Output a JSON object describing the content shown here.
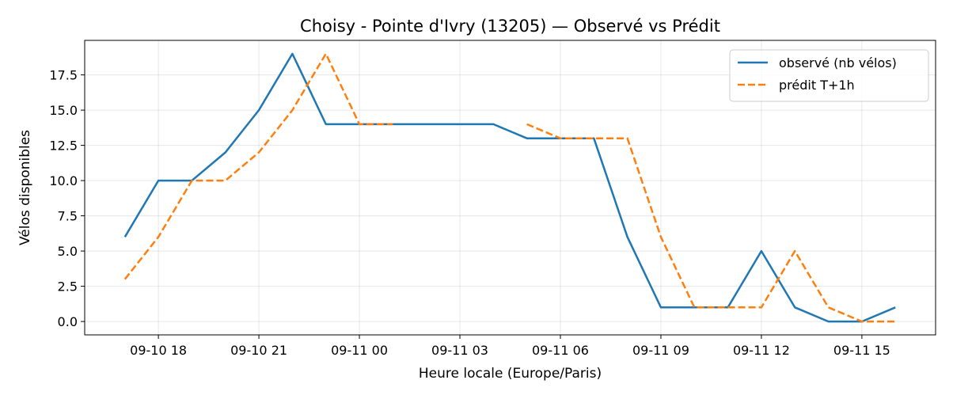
{
  "chart_data": {
    "type": "line",
    "title": "Choisy - Pointe d'Ivry (13205) — Observé vs Prédit",
    "xlabel": "Heure locale (Europe/Paris)",
    "ylabel": "Vélos disponibles",
    "x_ticks": [
      "09-10 18",
      "09-10 21",
      "09-11 00",
      "09-11 03",
      "09-11 06",
      "09-11 09",
      "09-11 12",
      "09-11 15"
    ],
    "x_tick_hours": [
      18,
      21,
      24,
      27,
      30,
      33,
      36,
      39
    ],
    "y_ticks": [
      "0.0",
      "2.5",
      "5.0",
      "7.5",
      "10.0",
      "12.5",
      "15.0",
      "17.5"
    ],
    "y_tick_values": [
      0,
      2.5,
      5,
      7.5,
      10,
      12.5,
      15,
      17.5
    ],
    "xlim_hours": [
      15.8,
      41.2
    ],
    "ylim": [
      -0.95,
      19.95
    ],
    "grid": true,
    "legend_position": "top-right",
    "series": [
      {
        "name": "observé (nb vélos)",
        "color": "#1f77b4",
        "dash": "solid",
        "x_hours": [
          17,
          18,
          19,
          20,
          21,
          22,
          23,
          24,
          25,
          26,
          27,
          28,
          29,
          30,
          31,
          32,
          33,
          34,
          35,
          36,
          37,
          38,
          39,
          40
        ],
        "values": [
          6,
          10,
          10,
          12,
          15,
          19,
          14,
          14,
          14,
          14,
          14,
          14,
          13,
          13,
          13,
          6,
          1,
          1,
          1,
          5,
          1,
          0,
          0,
          1
        ]
      },
      {
        "name": "prédit T+1h",
        "color": "#ff7f0e",
        "dash": "dashed",
        "x_hours": [
          17,
          18,
          19,
          20,
          21,
          22,
          23,
          24,
          25,
          null,
          29,
          30,
          31,
          32,
          33,
          34,
          35,
          36,
          37,
          38,
          39,
          40
        ],
        "values": [
          3,
          6,
          10,
          10,
          12,
          15,
          19,
          14,
          14,
          null,
          14,
          13,
          13,
          13,
          6,
          1,
          1,
          1,
          5,
          1,
          0,
          0
        ]
      }
    ]
  }
}
